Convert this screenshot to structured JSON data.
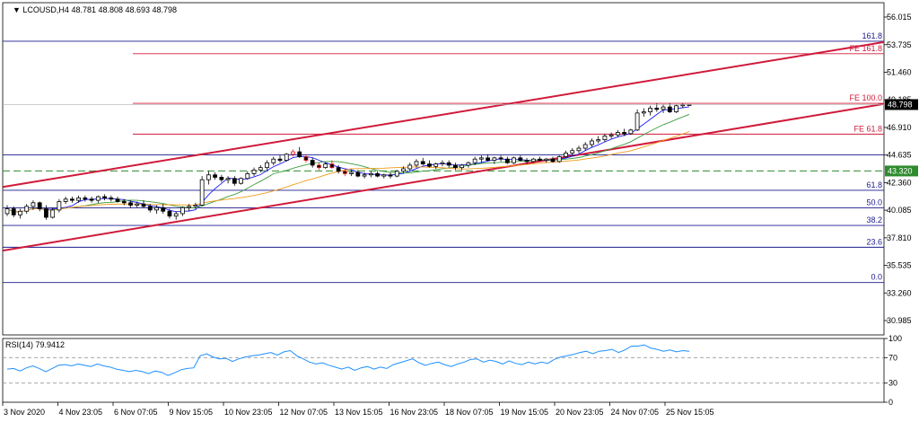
{
  "header": {
    "symbol": "LCOUSD,H4",
    "ohlc": "48.781 48.808 48.693 48.798"
  },
  "chart_data": [
    {
      "type": "candlestick",
      "title": "LCOUSD,H4 48.781 48.808 48.693 48.798",
      "ylim": [
        29.8,
        57.2
      ],
      "y_ticks": [
        "56.015",
        "53.735",
        "51.460",
        "49.185",
        "46.910",
        "44.635",
        "42.360",
        "40.085",
        "37.810",
        "35.535",
        "33.260",
        "30.985"
      ],
      "x_ticks": [
        "3 Nov 2020",
        "4 Nov 23:05",
        "6 Nov 07:05",
        "9 Nov 15:05",
        "10 Nov 23:05",
        "12 Nov 07:05",
        "13 Nov 15:05",
        "16 Nov 23:05",
        "18 Nov 07:05",
        "19 Nov 15:05",
        "20 Nov 23:05",
        "24 Nov 07:05",
        "25 Nov 15:05"
      ],
      "price_label": "48.798",
      "price_label_value": 48.798,
      "dashed_level_label": "43.320",
      "dashed_level_value": 43.32,
      "fib_retracement": [
        {
          "label": "161.8",
          "value": 54.02
        },
        {
          "label": "61.8",
          "value": 41.73
        },
        {
          "label": "50.0",
          "value": 40.28
        },
        {
          "label": "38.2",
          "value": 38.83
        },
        {
          "label": "23.6",
          "value": 37.03
        },
        {
          "label": "0.0",
          "value": 34.12
        }
      ],
      "fib_expansion": [
        {
          "label": "FE 161.8",
          "value": 52.99
        },
        {
          "label": "FE 100.0",
          "value": 48.9
        },
        {
          "label": "FE 61.8",
          "value": 46.36
        }
      ],
      "extra_level": 44.65,
      "channel_upper": [
        {
          "bar": 0,
          "price": 42.0
        },
        {
          "bar": 200,
          "price": 53.95
        }
      ],
      "channel_lower": [
        {
          "bar": 0,
          "price": 36.75
        },
        {
          "bar": 200,
          "price": 48.85
        }
      ],
      "candles": [
        [
          39.8,
          40.5,
          39.6,
          40.2
        ],
        [
          40.2,
          40.4,
          39.5,
          39.7
        ],
        [
          39.7,
          40.2,
          39.4,
          40.0
        ],
        [
          40.0,
          40.6,
          39.8,
          40.4
        ],
        [
          40.4,
          40.9,
          40.1,
          40.7
        ],
        [
          40.7,
          40.8,
          40.0,
          40.2
        ],
        [
          40.2,
          40.5,
          39.3,
          39.5
        ],
        [
          39.5,
          40.3,
          39.4,
          40.1
        ],
        [
          40.1,
          41.0,
          39.9,
          40.8
        ],
        [
          40.8,
          41.2,
          40.6,
          41.0
        ],
        [
          41.0,
          41.2,
          40.7,
          40.9
        ],
        [
          40.9,
          41.3,
          40.7,
          41.1
        ],
        [
          41.1,
          41.3,
          40.8,
          41.0
        ],
        [
          41.0,
          41.2,
          40.7,
          40.9
        ],
        [
          40.9,
          41.3,
          40.7,
          41.2
        ],
        [
          41.2,
          41.4,
          40.9,
          41.1
        ],
        [
          41.1,
          41.3,
          40.8,
          41.0
        ],
        [
          41.0,
          41.2,
          40.7,
          40.8
        ],
        [
          40.8,
          41.0,
          40.5,
          40.7
        ],
        [
          40.7,
          40.9,
          40.3,
          40.5
        ],
        [
          40.5,
          40.8,
          40.3,
          40.6
        ],
        [
          40.6,
          40.9,
          40.3,
          40.4
        ],
        [
          40.4,
          40.6,
          39.9,
          40.1
        ],
        [
          40.1,
          40.5,
          39.8,
          40.3
        ],
        [
          40.3,
          40.6,
          39.8,
          40.0
        ],
        [
          40.0,
          40.2,
          39.4,
          39.6
        ],
        [
          39.6,
          40.0,
          39.3,
          39.8
        ],
        [
          39.8,
          40.4,
          39.6,
          40.3
        ],
        [
          40.3,
          40.6,
          40.0,
          40.4
        ],
        [
          40.4,
          40.7,
          40.2,
          40.5
        ],
        [
          40.5,
          42.9,
          40.4,
          42.6
        ],
        [
          42.6,
          43.3,
          42.2,
          43.0
        ],
        [
          43.0,
          43.2,
          42.6,
          42.8
        ],
        [
          42.8,
          43.0,
          42.4,
          42.6
        ],
        [
          42.6,
          42.9,
          42.3,
          42.7
        ],
        [
          42.7,
          42.9,
          42.1,
          42.3
        ],
        [
          42.3,
          42.8,
          42.2,
          42.7
        ],
        [
          42.7,
          43.3,
          42.6,
          43.1
        ],
        [
          43.1,
          43.6,
          42.9,
          43.4
        ],
        [
          43.4,
          43.8,
          43.2,
          43.6
        ],
        [
          43.6,
          44.2,
          43.4,
          44.0
        ],
        [
          44.0,
          44.5,
          43.8,
          44.3
        ],
        [
          44.3,
          44.6,
          44.0,
          44.2
        ],
        [
          44.2,
          44.8,
          44.1,
          44.7
        ],
        [
          44.7,
          45.1,
          44.5,
          44.9
        ],
        [
          44.9,
          45.3,
          44.4,
          44.5
        ],
        [
          44.5,
          44.7,
          44.0,
          44.2
        ],
        [
          44.2,
          44.4,
          43.6,
          43.8
        ],
        [
          43.8,
          44.0,
          43.4,
          43.6
        ],
        [
          43.6,
          44.0,
          43.5,
          43.9
        ],
        [
          43.9,
          44.2,
          43.5,
          43.6
        ],
        [
          43.6,
          43.8,
          43.1,
          43.3
        ],
        [
          43.3,
          43.5,
          42.9,
          43.1
        ],
        [
          43.1,
          43.4,
          42.9,
          43.2
        ],
        [
          43.2,
          43.4,
          42.8,
          42.9
        ],
        [
          42.9,
          43.2,
          42.7,
          43.0
        ],
        [
          43.0,
          43.3,
          42.8,
          43.1
        ],
        [
          43.1,
          43.3,
          42.8,
          42.9
        ],
        [
          42.9,
          43.1,
          42.7,
          43.0
        ],
        [
          43.0,
          43.2,
          42.7,
          42.9
        ],
        [
          42.9,
          43.4,
          42.8,
          43.3
        ],
        [
          43.3,
          43.7,
          43.1,
          43.5
        ],
        [
          43.5,
          44.0,
          43.3,
          43.8
        ],
        [
          43.8,
          44.3,
          43.6,
          44.1
        ],
        [
          44.1,
          44.4,
          43.8,
          43.9
        ],
        [
          43.9,
          44.2,
          43.6,
          43.7
        ],
        [
          43.7,
          44.0,
          43.5,
          43.9
        ],
        [
          43.9,
          44.2,
          43.7,
          44.0
        ],
        [
          44.0,
          44.2,
          43.6,
          43.8
        ],
        [
          43.8,
          44.0,
          43.4,
          43.6
        ],
        [
          43.6,
          43.9,
          43.4,
          43.8
        ],
        [
          43.8,
          44.1,
          43.6,
          44.0
        ],
        [
          44.0,
          44.5,
          43.8,
          44.3
        ],
        [
          44.3,
          44.6,
          44.0,
          44.4
        ],
        [
          44.4,
          44.7,
          44.1,
          44.2
        ],
        [
          44.2,
          44.5,
          43.9,
          44.4
        ],
        [
          44.4,
          44.6,
          44.1,
          44.3
        ],
        [
          44.3,
          44.5,
          43.9,
          44.0
        ],
        [
          44.0,
          44.5,
          43.9,
          44.4
        ],
        [
          44.4,
          44.6,
          44.1,
          44.2
        ],
        [
          44.2,
          44.4,
          43.9,
          44.1
        ],
        [
          44.1,
          44.4,
          44.0,
          44.3
        ],
        [
          44.3,
          44.5,
          44.1,
          44.2
        ],
        [
          44.2,
          44.4,
          44.0,
          44.3
        ],
        [
          44.3,
          44.5,
          44.0,
          44.1
        ],
        [
          44.1,
          44.6,
          44.0,
          44.5
        ],
        [
          44.5,
          45.0,
          44.4,
          44.8
        ],
        [
          44.8,
          45.2,
          44.6,
          45.0
        ],
        [
          45.0,
          45.4,
          44.8,
          45.2
        ],
        [
          45.2,
          45.7,
          45.0,
          45.5
        ],
        [
          45.5,
          46.0,
          45.3,
          45.8
        ],
        [
          45.8,
          46.2,
          45.6,
          45.9
        ],
        [
          45.9,
          46.4,
          45.7,
          46.2
        ],
        [
          46.2,
          46.5,
          46.0,
          46.3
        ],
        [
          46.3,
          46.7,
          46.1,
          46.5
        ],
        [
          46.5,
          46.8,
          46.2,
          46.4
        ],
        [
          46.4,
          46.8,
          46.3,
          46.7
        ],
        [
          46.7,
          48.4,
          46.6,
          48.1
        ],
        [
          48.1,
          48.5,
          47.8,
          48.2
        ],
        [
          48.2,
          48.7,
          47.9,
          48.5
        ],
        [
          48.5,
          48.9,
          48.2,
          48.4
        ],
        [
          48.4,
          48.8,
          48.1,
          48.6
        ],
        [
          48.6,
          48.9,
          48.1,
          48.2
        ],
        [
          48.2,
          48.8,
          48.1,
          48.7
        ],
        [
          48.7,
          48.9,
          48.5,
          48.78
        ],
        [
          48.781,
          48.808,
          48.693,
          48.798
        ]
      ],
      "moving_averages": [
        {
          "period": "fast",
          "color": "#1a1aff"
        },
        {
          "period": "medium",
          "color": "#3c9c3c"
        },
        {
          "period": "slow",
          "color": "#f29a1a"
        }
      ],
      "fractal_highlight": {
        "from_bar": 44,
        "to_bar": 52,
        "color": "#e01a1a"
      }
    },
    {
      "type": "line",
      "title": "RSI(14) 79.9412",
      "ylim": [
        0,
        100
      ],
      "y_ticks": [
        "100",
        "70",
        "30",
        "0"
      ],
      "levels": [
        70,
        30
      ],
      "values": [
        52,
        53,
        49,
        54,
        57,
        53,
        48,
        53,
        58,
        59,
        57,
        60,
        58,
        56,
        60,
        57,
        55,
        52,
        50,
        48,
        50,
        48,
        45,
        49,
        47,
        42,
        46,
        51,
        53,
        54,
        73,
        76,
        71,
        68,
        69,
        64,
        68,
        71,
        73,
        74,
        76,
        78,
        74,
        79,
        81,
        73,
        68,
        63,
        60,
        62,
        58,
        55,
        52,
        55,
        50,
        54,
        56,
        52,
        55,
        53,
        59,
        62,
        65,
        68,
        62,
        58,
        61,
        63,
        59,
        56,
        60,
        63,
        67,
        68,
        63,
        66,
        64,
        60,
        65,
        61,
        59,
        63,
        60,
        63,
        61,
        67,
        71,
        73,
        75,
        78,
        80,
        76,
        80,
        81,
        83,
        78,
        82,
        88,
        88,
        90,
        85,
        83,
        80,
        82,
        79,
        81,
        79.9412
      ],
      "color": "#1e90ff"
    }
  ]
}
